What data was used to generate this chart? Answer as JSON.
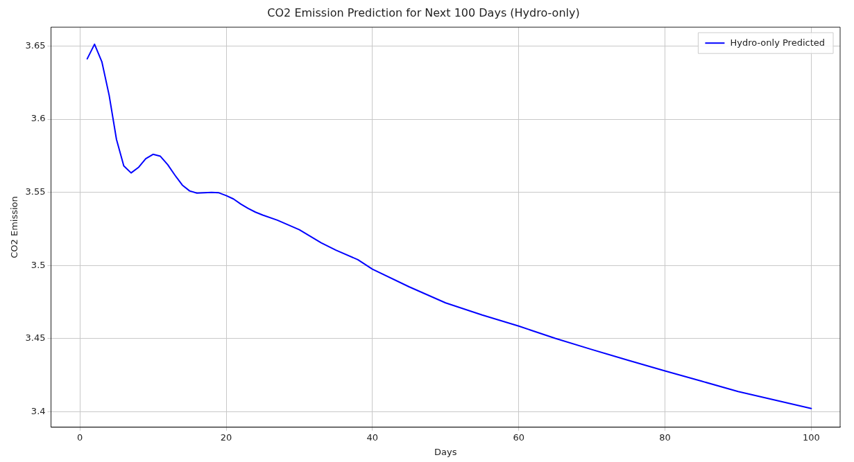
{
  "chart_data": {
    "type": "line",
    "title": "CO2 Emission Prediction for Next 100 Days (Hydro-only)",
    "xlabel": "Days",
    "ylabel": "CO2 Emission",
    "x": [
      1,
      2,
      3,
      4,
      5,
      6,
      7,
      8,
      9,
      10,
      11,
      12,
      13,
      14,
      15,
      16,
      17,
      18,
      19,
      20,
      21,
      22,
      23,
      24,
      25,
      27,
      30,
      33,
      35,
      38,
      40,
      45,
      50,
      55,
      60,
      65,
      70,
      75,
      80,
      85,
      90,
      95,
      100
    ],
    "series": [
      {
        "name": "Hydro-only Predicted",
        "color": "#0000ff",
        "values": [
          3.6413,
          3.6512,
          3.6393,
          3.6163,
          3.5862,
          3.5681,
          3.5633,
          3.567,
          3.573,
          3.576,
          3.5747,
          3.569,
          3.5617,
          3.555,
          3.551,
          3.5495,
          3.5497,
          3.55,
          3.5497,
          3.5478,
          3.5455,
          3.542,
          3.539,
          3.5365,
          3.5345,
          3.531,
          3.5245,
          3.5155,
          3.5105,
          3.504,
          3.4975,
          3.4855,
          3.4745,
          3.4662,
          3.4586,
          3.4502,
          3.4426,
          3.4352,
          3.428,
          3.421,
          3.4139,
          3.4081,
          3.4023
        ]
      }
    ],
    "xlim": [
      -3.95,
      103.95
    ],
    "ylim": [
      3.3895,
      3.6629
    ],
    "xticks": [
      0,
      20,
      40,
      60,
      80,
      100
    ],
    "yticks": [
      3.4,
      3.45,
      3.5,
      3.55,
      3.6,
      3.65
    ],
    "grid": true,
    "legend": "top right",
    "marker": "none",
    "line_style": "solid"
  }
}
